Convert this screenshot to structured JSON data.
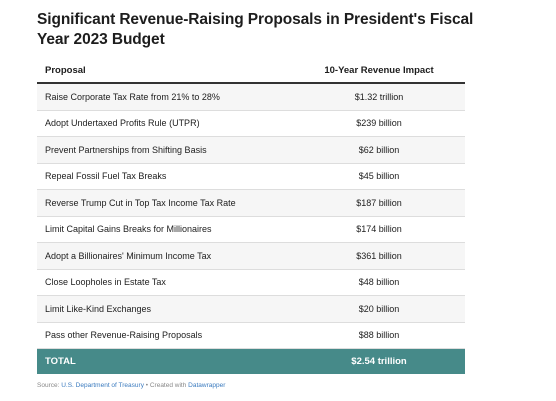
{
  "title": "Significant Revenue-Raising Proposals in President's Fiscal Year 2023 Budget",
  "table": {
    "headers": {
      "proposal": "Proposal",
      "impact": "10-Year Revenue Impact"
    },
    "rows": [
      {
        "proposal": "Raise Corporate Tax Rate from 21% to 28%",
        "impact": "$1.32 trillion"
      },
      {
        "proposal": "Adopt Undertaxed Profits Rule (UTPR)",
        "impact": "$239 billion"
      },
      {
        "proposal": "Prevent Partnerships from Shifting Basis",
        "impact": "$62 billion"
      },
      {
        "proposal": "Repeal Fossil Fuel Tax Breaks",
        "impact": "$45 billion"
      },
      {
        "proposal": "Reverse Trump Cut in Top Tax Income Tax Rate",
        "impact": "$187 billion"
      },
      {
        "proposal": "Limit Capital Gains Breaks for Millionaires",
        "impact": "$174 billion"
      },
      {
        "proposal": "Adopt a Billionaires' Minimum Income Tax",
        "impact": "$361 billion"
      },
      {
        "proposal": "Close Loopholes in Estate Tax",
        "impact": "$48 billion"
      },
      {
        "proposal": "Limit Like-Kind Exchanges",
        "impact": "$20 billion"
      },
      {
        "proposal": "Pass other Revenue-Raising Proposals",
        "impact": "$88 billion"
      }
    ],
    "total": {
      "label": "TOTAL",
      "value": "$2.54 trillion"
    }
  },
  "footer": {
    "source_prefix": "Source: ",
    "source_link": "U.S. Department of Treasury",
    "separator": " • Created with ",
    "tool_link": "Datawrapper"
  },
  "colors": {
    "total_background": "#468a89",
    "link": "#3b7bbf"
  }
}
